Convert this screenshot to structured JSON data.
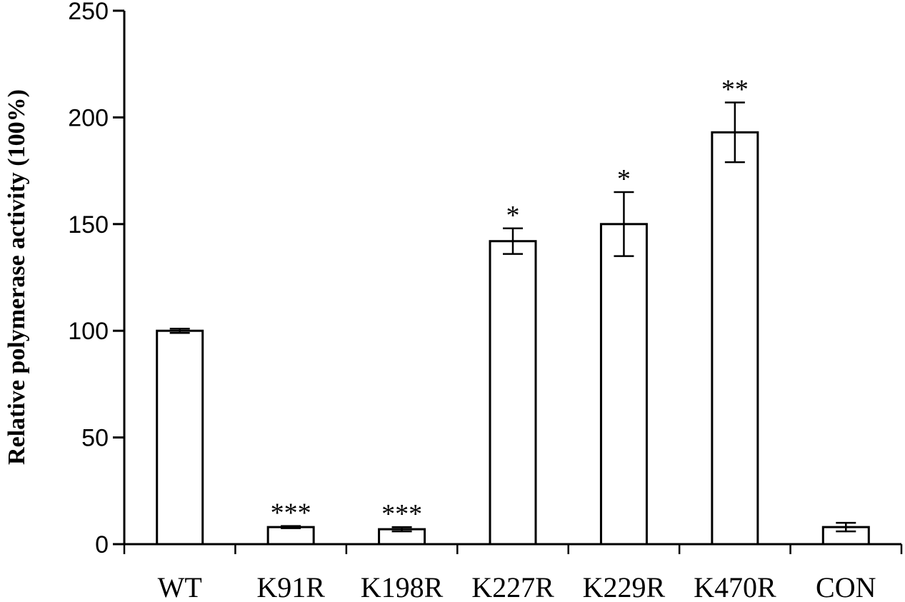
{
  "chart_data": {
    "type": "bar",
    "categories": [
      "WT",
      "K91R",
      "K198R",
      "K227R",
      "K229R",
      "K470R",
      "CON"
    ],
    "values": [
      100,
      8,
      7,
      142,
      150,
      193,
      8
    ],
    "errors": [
      1,
      0.5,
      1,
      6,
      15,
      14,
      2
    ],
    "significance": [
      "",
      "***",
      "***",
      "*",
      "*",
      "**",
      ""
    ],
    "ylabel": "Relative polymerase activity (100%)",
    "xlabel": "",
    "ylim": [
      0,
      250
    ],
    "yticks": [
      0,
      50,
      100,
      150,
      200,
      250
    ],
    "grid": false,
    "bar_fill": "#ffffff",
    "bar_stroke": "#000000"
  }
}
